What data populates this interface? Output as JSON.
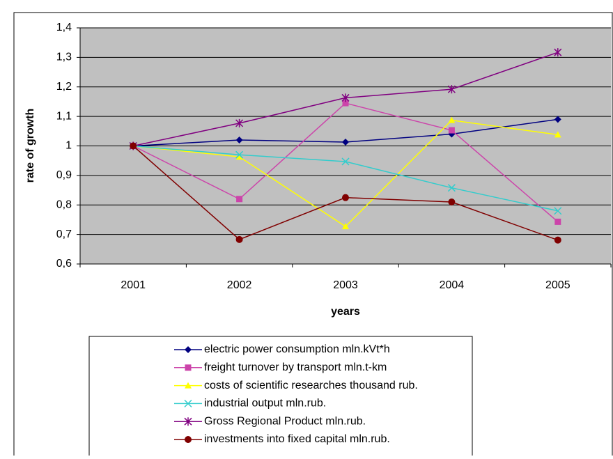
{
  "chart_data": {
    "type": "line",
    "x_label": "years",
    "y_label": "rate of growth",
    "categories": [
      "2001",
      "2002",
      "2003",
      "2004",
      "2005"
    ],
    "ylim": [
      0.6,
      1.4
    ],
    "yticks": [
      {
        "value": 0.6,
        "label": "0,6"
      },
      {
        "value": 0.7,
        "label": "0,7"
      },
      {
        "value": 0.8,
        "label": "0,8"
      },
      {
        "value": 0.9,
        "label": "0,9"
      },
      1,
      {
        "value": 1.1,
        "label": "1,1"
      },
      {
        "value": 1.2,
        "label": "1,2"
      },
      {
        "value": 1.3,
        "label": "1,3"
      },
      {
        "value": 1.4,
        "label": "1,4"
      }
    ],
    "grid": true,
    "series": [
      {
        "name": "electric power consumption mln.kVt*h",
        "color": "#000080",
        "marker": "diamond",
        "values": [
          1,
          1.02,
          1.013,
          1.04,
          1.09
        ]
      },
      {
        "name": "freight turnover by transport mln.t-km",
        "color": "#cc44aa",
        "marker": "square",
        "values": [
          1,
          0.82,
          1.145,
          1.053,
          0.743
        ]
      },
      {
        "name": "costs of scientific researches thousand rub.",
        "color": "#ffff00",
        "marker": "triangle",
        "values": [
          1,
          0.963,
          0.727,
          1.087,
          1.038
        ]
      },
      {
        "name": "industrial output mln.rub.",
        "color": "#33cccc",
        "marker": "x",
        "values": [
          1,
          0.97,
          0.947,
          0.858,
          0.78
        ]
      },
      {
        "name": "Gross Regional Product mln.rub.",
        "color": "#800080",
        "marker": "star",
        "values": [
          1,
          1.077,
          1.163,
          1.192,
          1.317
        ]
      },
      {
        "name": "investments into fixed capital mln.rub.",
        "color": "#800000",
        "marker": "circle",
        "values": [
          1,
          0.683,
          0.825,
          0.81,
          0.681
        ]
      }
    ]
  }
}
